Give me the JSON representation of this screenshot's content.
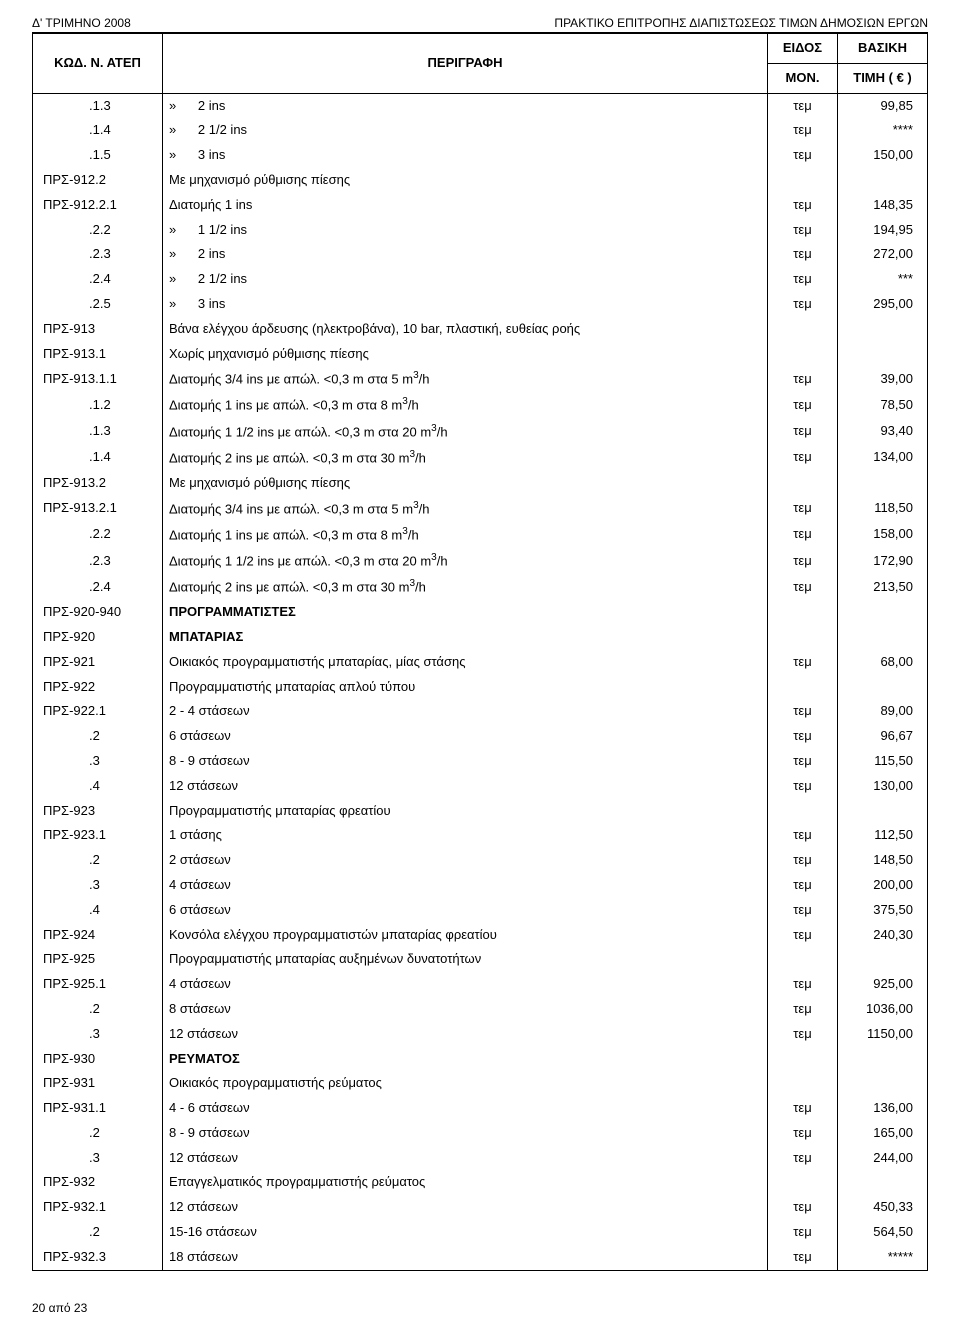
{
  "header": {
    "left": "Δ' ΤΡΙΜΗΝΟ 2008",
    "right": "ΠΡΑΚΤΙΚΟ ΕΠΙΤΡΟΠΗΣ ΔΙΑΠΙΣΤΩΣΕΩΣ ΤΙΜΩΝ ΔΗΜΟΣΙΩΝ ΕΡΓΩΝ"
  },
  "table": {
    "head": {
      "code": "ΚΩΔ. Ν. ΑΤΕΠ",
      "desc": "ΠΕΡΙΓΡΑΦΗ",
      "unit_l1": "ΕΙΔΟΣ",
      "unit_l2": "ΜΟΝ.",
      "price_l1": "ΒΑΣΙΚΗ",
      "price_l2": "ΤΙΜΗ ( € )"
    },
    "rows": [
      {
        "code": ".1.3",
        "desc": "»      2 ins",
        "unit": "τεμ",
        "price": "99,85",
        "indent": 1
      },
      {
        "code": ".1.4",
        "desc": "»      2 1/2 ins",
        "unit": "τεμ",
        "price": "****",
        "indent": 1
      },
      {
        "code": ".1.5",
        "desc": "»      3 ins",
        "unit": "τεμ",
        "price": "150,00",
        "indent": 1
      },
      {
        "code": "ΠΡΣ-912.2",
        "desc": "Με μηχανισμό ρύθμισης πίεσης",
        "unit": "",
        "price": ""
      },
      {
        "code": "ΠΡΣ-912.2.1",
        "desc": "Διατομής 1 ins",
        "unit": "τεμ",
        "price": "148,35"
      },
      {
        "code": ".2.2",
        "desc": "»      1 1/2 ins",
        "unit": "τεμ",
        "price": "194,95",
        "indent": 1
      },
      {
        "code": ".2.3",
        "desc": "»      2 ins",
        "unit": "τεμ",
        "price": "272,00",
        "indent": 1
      },
      {
        "code": ".2.4",
        "desc": "»      2 1/2 ins",
        "unit": "τεμ",
        "price": "***",
        "indent": 1
      },
      {
        "code": ".2.5",
        "desc": "»      3 ins",
        "unit": "τεμ",
        "price": "295,00",
        "indent": 1
      },
      {
        "code": "ΠΡΣ-913",
        "desc": "Βάνα ελέγχου άρδευσης (ηλεκτροβάνα), 10 bar, πλαστική, ευθείας ροής",
        "unit": "",
        "price": ""
      },
      {
        "code": "ΠΡΣ-913.1",
        "desc": "Χωρίς μηχανισμό ρύθμισης πίεσης",
        "unit": "",
        "price": ""
      },
      {
        "code": "ΠΡΣ-913.1.1",
        "desc": "Διατομής 3/4 ins με απώλ. <0,3 m στα 5 m³/h",
        "unit": "τεμ",
        "price": "39,00",
        "sup3": true
      },
      {
        "code": ".1.2",
        "desc": "Διατομής 1 ins με απώλ. <0,3 m στα 8 m³/h",
        "unit": "τεμ",
        "price": "78,50",
        "indent": 1,
        "sup3": true
      },
      {
        "code": ".1.3",
        "desc": "Διατομής 1 1/2 ins με απώλ. <0,3 m στα 20 m³/h",
        "unit": "τεμ",
        "price": "93,40",
        "indent": 1,
        "sup3": true
      },
      {
        "code": ".1.4",
        "desc": "Διατομής 2 ins με απώλ. <0,3 m στα 30 m³/h",
        "unit": "τεμ",
        "price": "134,00",
        "indent": 1,
        "sup3": true
      },
      {
        "code": "ΠΡΣ-913.2",
        "desc": "Με μηχανισμό ρύθμισης πίεσης",
        "unit": "",
        "price": ""
      },
      {
        "code": "ΠΡΣ-913.2.1",
        "desc": "Διατομής 3/4 ins με απώλ. <0,3 m στα 5 m³/h",
        "unit": "τεμ",
        "price": "118,50",
        "sup3": true
      },
      {
        "code": ".2.2",
        "desc": "Διατομής 1 ins με απώλ. <0,3 m στα 8 m³/h",
        "unit": "τεμ",
        "price": "158,00",
        "indent": 1,
        "sup3": true
      },
      {
        "code": ".2.3",
        "desc": "Διατομής 1 1/2 ins με απώλ. <0,3 m στα 20 m³/h",
        "unit": "τεμ",
        "price": "172,90",
        "indent": 1,
        "sup3": true
      },
      {
        "code": ".2.4",
        "desc": "Διατομής 2 ins με απώλ. <0,3 m στα 30 m³/h",
        "unit": "τεμ",
        "price": "213,50",
        "indent": 1,
        "sup3": true
      },
      {
        "code": "ΠΡΣ-920-940",
        "desc": "ΠΡΟΓΡΑΜΜΑΤΙΣΤΕΣ",
        "unit": "",
        "price": "",
        "bold": true
      },
      {
        "code": "ΠΡΣ-920",
        "desc": "ΜΠΑΤΑΡΙΑΣ",
        "unit": "",
        "price": "",
        "bold": true
      },
      {
        "code": "ΠΡΣ-921",
        "desc": "Οικιακός προγραμματιστής μπαταρίας, μίας στάσης",
        "unit": "τεμ",
        "price": "68,00"
      },
      {
        "code": "ΠΡΣ-922",
        "desc": "Προγραμματιστής μπαταρίας απλού τύπου",
        "unit": "",
        "price": ""
      },
      {
        "code": "ΠΡΣ-922.1",
        "desc": "2 - 4 στάσεων",
        "unit": "τεμ",
        "price": "89,00"
      },
      {
        "code": ".2",
        "desc": "6 στάσεων",
        "unit": "τεμ",
        "price": "96,67",
        "indent": 1
      },
      {
        "code": ".3",
        "desc": "8 - 9 στάσεων",
        "unit": "τεμ",
        "price": "115,50",
        "indent": 1
      },
      {
        "code": ".4",
        "desc": "12 στάσεων",
        "unit": "τεμ",
        "price": "130,00",
        "indent": 1
      },
      {
        "code": "ΠΡΣ-923",
        "desc": "Προγραμματιστής μπαταρίας φρεατίου",
        "unit": "",
        "price": ""
      },
      {
        "code": "ΠΡΣ-923.1",
        "desc": "1 στάσης",
        "unit": "τεμ",
        "price": "112,50"
      },
      {
        "code": ".2",
        "desc": "2 στάσεων",
        "unit": "τεμ",
        "price": "148,50",
        "indent": 1
      },
      {
        "code": ".3",
        "desc": "4 στάσεων",
        "unit": "τεμ",
        "price": "200,00",
        "indent": 1
      },
      {
        "code": ".4",
        "desc": "6 στάσεων",
        "unit": "τεμ",
        "price": "375,50",
        "indent": 1
      },
      {
        "code": "ΠΡΣ-924",
        "desc": "Κονσόλα ελέγχου προγραμματιστών μπαταρίας φρεατίου",
        "unit": "τεμ",
        "price": "240,30"
      },
      {
        "code": "ΠΡΣ-925",
        "desc": "Προγραμματιστής μπαταρίας αυξημένων δυνατοτήτων",
        "unit": "",
        "price": ""
      },
      {
        "code": "ΠΡΣ-925.1",
        "desc": "4 στάσεων",
        "unit": "τεμ",
        "price": "925,00"
      },
      {
        "code": ".2",
        "desc": "8 στάσεων",
        "unit": "τεμ",
        "price": "1036,00",
        "indent": 1
      },
      {
        "code": ".3",
        "desc": "12 στάσεων",
        "unit": "τεμ",
        "price": "1150,00",
        "indent": 1
      },
      {
        "code": "ΠΡΣ-930",
        "desc": "ΡΕΥΜΑΤΟΣ",
        "unit": "",
        "price": "",
        "bold": true
      },
      {
        "code": "ΠΡΣ-931",
        "desc": "Οικιακός προγραμματιστής ρεύματος",
        "unit": "",
        "price": ""
      },
      {
        "code": "ΠΡΣ-931.1",
        "desc": "4 - 6 στάσεων",
        "unit": "τεμ",
        "price": "136,00"
      },
      {
        "code": ".2",
        "desc": "8 - 9 στάσεων",
        "unit": "τεμ",
        "price": "165,00",
        "indent": 1
      },
      {
        "code": ".3",
        "desc": "12 στάσεων",
        "unit": "τεμ",
        "price": "244,00",
        "indent": 1
      },
      {
        "code": "ΠΡΣ-932",
        "desc": "Επαγγελματικός προγραμματιστής ρεύματος",
        "unit": "",
        "price": ""
      },
      {
        "code": "ΠΡΣ-932.1",
        "desc": "12 στάσεων",
        "unit": "τεμ",
        "price": "450,33"
      },
      {
        "code": ".2",
        "desc": "15-16 στάσεων",
        "unit": "τεμ",
        "price": "564,50",
        "indent": 1
      },
      {
        "code": "ΠΡΣ-932.3",
        "desc": "18 στάσεων",
        "unit": "τεμ",
        "price": "*****"
      }
    ]
  },
  "footer": "20 από 23"
}
